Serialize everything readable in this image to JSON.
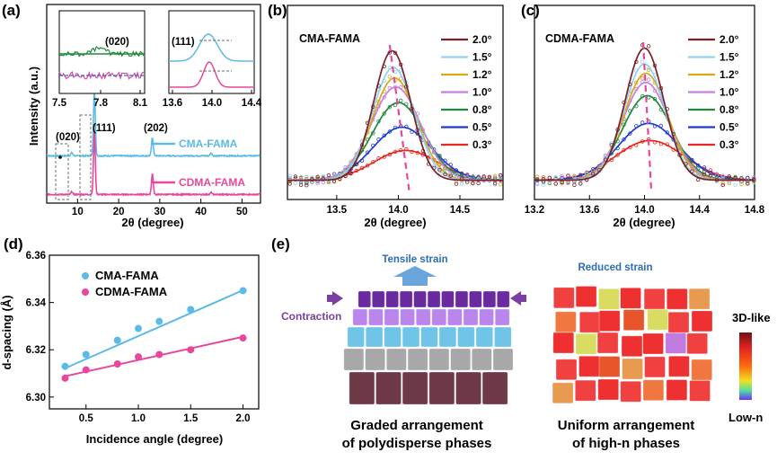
{
  "panels": {
    "a": {
      "label": "(a)"
    },
    "b": {
      "label": "(b)"
    },
    "c": {
      "label": "(c)"
    },
    "d": {
      "label": "(d)"
    },
    "e": {
      "label": "(e)"
    }
  },
  "colors": {
    "cma": "#5bbbe6",
    "cdma": "#e8479d",
    "dash": "#e8479d",
    "angles": {
      "2.0°": "#7a1f2a",
      "1.5°": "#8ed3f0",
      "1.2°": "#d9a91a",
      "1.0°": "#c77fe0",
      "0.8°": "#1f8a3c",
      "0.5°": "#1f3bd0",
      "0.3°": "#e8281e"
    }
  },
  "chart_data": [
    {
      "panel": "a",
      "type": "line",
      "xlabel": "2θ (degree)",
      "ylabel": "Intensity (a.u.)",
      "xlim": [
        2.5,
        54.5
      ],
      "xticks": [
        "10",
        "20",
        "30",
        "40",
        "50"
      ],
      "series": [
        {
          "name": "CMA-FAMA",
          "x": [
            2.5,
            8.6,
            14.1,
            28.2,
            42.5,
            54.5
          ],
          "y": [
            0.02,
            0.05,
            1.0,
            0.28,
            0.04,
            0.02
          ]
        },
        {
          "name": "CDMA-FAMA",
          "x": [
            2.5,
            8.6,
            14.1,
            28.2,
            42.5,
            54.5
          ],
          "y": [
            0.02,
            0.04,
            0.95,
            0.32,
            0.03,
            0.02
          ]
        }
      ],
      "annotations": [
        "(020)",
        "(111)",
        "(202)"
      ],
      "insets": [
        {
          "xlim": [
            7.5,
            8.2
          ],
          "xticks": [
            "7.5",
            "7.8",
            "8.1"
          ],
          "label": "(020)",
          "peak": 7.9
        },
        {
          "xlim": [
            13.6,
            14.4
          ],
          "xticks": [
            "13.6",
            "14.0",
            "14.4"
          ],
          "label": "(111)",
          "peak": 14.0
        }
      ]
    },
    {
      "panel": "b",
      "type": "line",
      "title": "CMA-FAMA",
      "xlabel": "2θ (degree)",
      "xlim": [
        13.1,
        14.85
      ],
      "xticks": [
        "13.5",
        "14.0",
        "14.5"
      ],
      "series": [
        {
          "name": "2.0°",
          "center": 13.95,
          "amp": 1.0,
          "width": 0.15
        },
        {
          "name": "1.5°",
          "center": 13.96,
          "amp": 0.87,
          "width": 0.17
        },
        {
          "name": "1.2°",
          "center": 13.97,
          "amp": 0.79,
          "width": 0.18
        },
        {
          "name": "1.0°",
          "center": 13.98,
          "amp": 0.72,
          "width": 0.2
        },
        {
          "name": "0.8°",
          "center": 14.0,
          "amp": 0.6,
          "width": 0.21
        },
        {
          "name": "0.5°",
          "center": 14.03,
          "amp": 0.41,
          "width": 0.24
        },
        {
          "name": "0.3°",
          "center": 14.06,
          "amp": 0.23,
          "width": 0.26
        }
      ],
      "guide": {
        "x_top": 13.93,
        "x_bottom": 14.09
      }
    },
    {
      "panel": "c",
      "type": "line",
      "title": "CDMA-FAMA",
      "xlabel": "2θ (degree)",
      "xlim": [
        13.2,
        14.8
      ],
      "xticks": [
        "13.2",
        "13.6",
        "14.0",
        "14.4",
        "14.8"
      ],
      "series": [
        {
          "name": "2.0°",
          "center": 14.0,
          "amp": 1.0,
          "width": 0.14
        },
        {
          "name": "1.5°",
          "center": 14.0,
          "amp": 0.88,
          "width": 0.15
        },
        {
          "name": "1.2°",
          "center": 14.01,
          "amp": 0.81,
          "width": 0.16
        },
        {
          "name": "1.0°",
          "center": 14.01,
          "amp": 0.74,
          "width": 0.17
        },
        {
          "name": "0.8°",
          "center": 14.02,
          "amp": 0.64,
          "width": 0.18
        },
        {
          "name": "0.5°",
          "center": 14.03,
          "amp": 0.43,
          "width": 0.22
        },
        {
          "name": "0.3°",
          "center": 14.04,
          "amp": 0.3,
          "width": 0.25
        }
      ],
      "guide": {
        "x_top": 13.99,
        "x_bottom": 14.05
      }
    },
    {
      "panel": "d",
      "type": "scatter",
      "xlabel": "Incidence angle (degree)",
      "ylabel": "d-spacing (Å)",
      "xlim": [
        0.15,
        2.15
      ],
      "ylim": [
        6.295,
        6.36
      ],
      "xticks": [
        "0.5",
        "1.0",
        "1.5",
        "2.0"
      ],
      "yticks": [
        "6.30",
        "6.32",
        "6.34",
        "6.36"
      ],
      "x": [
        0.3,
        0.5,
        0.8,
        1.0,
        1.2,
        1.5,
        2.0
      ],
      "series": [
        {
          "name": "CMA-FAMA",
          "values": [
            6.313,
            6.318,
            6.324,
            6.329,
            6.332,
            6.337,
            6.345
          ],
          "fit": [
            6.3122,
            6.3452
          ]
        },
        {
          "name": "CDMA-FAMA",
          "values": [
            6.308,
            6.3115,
            6.314,
            6.317,
            6.318,
            6.32,
            6.325
          ],
          "fit": [
            6.3088,
            6.3255
          ]
        }
      ]
    }
  ],
  "schematic": {
    "tensile": "Tensile strain",
    "contraction": "Contraction",
    "reduced": "Reduced strain",
    "caption_left": [
      "Graded arrangement",
      "of polydisperse phases"
    ],
    "caption_right": [
      "Uniform arrangement",
      "of high-n phases"
    ],
    "scale_top": "3D-like",
    "scale_bottom": "Low-n"
  }
}
